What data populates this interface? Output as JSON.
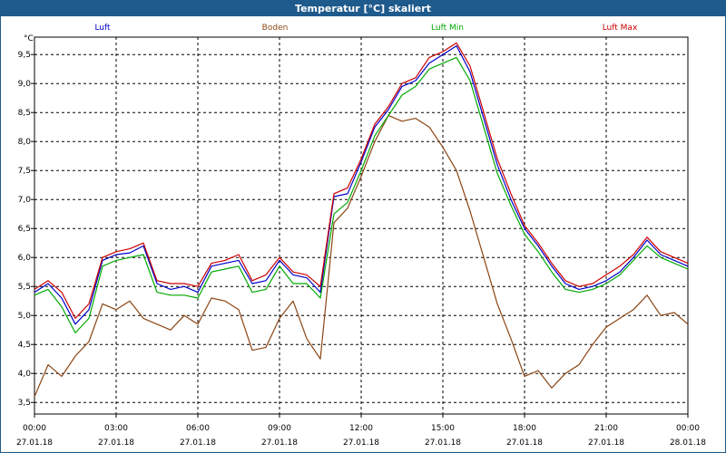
{
  "window": {
    "title": "Temperatur [°C] skaliert"
  },
  "chart_data": {
    "type": "line",
    "title": "Temperatur [°C] skaliert",
    "ylabel": "°C",
    "xlabel": "",
    "ylim": [
      3.3,
      9.8
    ],
    "yticks": [
      3.5,
      4.0,
      4.5,
      5.0,
      5.5,
      6.0,
      6.5,
      7.0,
      7.5,
      8.0,
      8.5,
      9.0,
      9.5
    ],
    "ytick_labels": [
      "3,5",
      "4,0",
      "4,5",
      "5,0",
      "5,5",
      "6,0",
      "6,5",
      "7,0",
      "7,5",
      "8,0",
      "8,5",
      "9,0",
      "9,5"
    ],
    "x_hours": [
      0,
      3,
      6,
      9,
      12,
      15,
      18,
      21,
      24
    ],
    "x_time_labels": [
      "00:00",
      "03:00",
      "06:00",
      "09:00",
      "12:00",
      "15:00",
      "18:00",
      "21:00",
      "00:00"
    ],
    "x_date_labels": [
      "27.01.18",
      "27.01.18",
      "27.01.18",
      "27.01.18",
      "27.01.18",
      "27.01.18",
      "27.01.18",
      "27.01.18",
      "28.01.18"
    ],
    "grid": true,
    "legend": "top",
    "series": [
      {
        "name": "Luft",
        "color": "#0000cc",
        "x": [
          0,
          0.5,
          1,
          1.5,
          2,
          2.5,
          3,
          3.5,
          4,
          4.5,
          5,
          5.5,
          6,
          6.5,
          7,
          7.5,
          8,
          8.5,
          9,
          9.5,
          10,
          10.5,
          11,
          11.5,
          12,
          12.5,
          13,
          13.5,
          14,
          14.5,
          15,
          15.5,
          16,
          16.5,
          17,
          17.5,
          18,
          18.5,
          19,
          19.5,
          20,
          20.5,
          21,
          21.5,
          22,
          22.5,
          23,
          23.5,
          24
        ],
        "y": [
          5.4,
          5.55,
          5.3,
          4.85,
          5.1,
          5.95,
          6.05,
          6.08,
          6.2,
          5.55,
          5.45,
          5.5,
          5.4,
          5.85,
          5.9,
          5.95,
          5.55,
          5.6,
          5.95,
          5.7,
          5.65,
          5.4,
          7.05,
          7.1,
          7.65,
          8.25,
          8.55,
          8.95,
          9.05,
          9.35,
          9.5,
          9.65,
          9.2,
          8.4,
          7.6,
          7.0,
          6.5,
          6.2,
          5.85,
          5.55,
          5.45,
          5.5,
          5.6,
          5.75,
          6.0,
          6.3,
          6.05,
          5.95,
          5.85
        ]
      },
      {
        "name": "Boden",
        "color": "#8b4513",
        "x": [
          0,
          0.5,
          1,
          1.5,
          2,
          2.5,
          3,
          3.5,
          4,
          4.5,
          5,
          5.5,
          6,
          6.5,
          7,
          7.5,
          8,
          8.5,
          9,
          9.5,
          10,
          10.5,
          11,
          11.5,
          12,
          12.5,
          13,
          13.5,
          14,
          14.5,
          15,
          15.5,
          16,
          16.5,
          17,
          17.5,
          18,
          18.5,
          19,
          19.5,
          20,
          20.5,
          21,
          21.5,
          22,
          22.5,
          23,
          23.5,
          24
        ],
        "y": [
          3.6,
          4.15,
          3.95,
          4.3,
          4.55,
          5.2,
          5.1,
          5.25,
          4.95,
          4.85,
          4.75,
          5.0,
          4.85,
          5.3,
          5.25,
          5.1,
          4.4,
          4.45,
          4.95,
          5.25,
          4.6,
          4.25,
          6.6,
          6.85,
          7.4,
          8.0,
          8.45,
          8.35,
          8.4,
          8.25,
          7.9,
          7.5,
          6.8,
          6.0,
          5.2,
          4.6,
          3.95,
          4.05,
          3.75,
          4.0,
          4.15,
          4.5,
          4.8,
          4.95,
          5.1,
          5.35,
          5.0,
          5.05,
          4.85
        ]
      },
      {
        "name": "Luft Min",
        "color": "#00aa00",
        "x": [
          0,
          0.5,
          1,
          1.5,
          2,
          2.5,
          3,
          3.5,
          4,
          4.5,
          5,
          5.5,
          6,
          6.5,
          7,
          7.5,
          8,
          8.5,
          9,
          9.5,
          10,
          10.5,
          11,
          11.5,
          12,
          12.5,
          13,
          13.5,
          14,
          14.5,
          15,
          15.5,
          16,
          16.5,
          17,
          17.5,
          18,
          18.5,
          19,
          19.5,
          20,
          20.5,
          21,
          21.5,
          22,
          22.5,
          23,
          23.5,
          24
        ],
        "y": [
          5.35,
          5.45,
          5.15,
          4.7,
          4.95,
          5.85,
          5.95,
          6.0,
          6.05,
          5.4,
          5.35,
          5.35,
          5.3,
          5.75,
          5.8,
          5.85,
          5.4,
          5.45,
          5.85,
          5.55,
          5.55,
          5.3,
          6.75,
          6.95,
          7.5,
          8.1,
          8.45,
          8.8,
          8.95,
          9.25,
          9.35,
          9.45,
          9.05,
          8.25,
          7.45,
          6.9,
          6.4,
          6.1,
          5.75,
          5.45,
          5.4,
          5.45,
          5.55,
          5.7,
          5.95,
          6.2,
          6.0,
          5.9,
          5.8
        ]
      },
      {
        "name": "Luft Max",
        "color": "#cc0000",
        "x": [
          0,
          0.5,
          1,
          1.5,
          2,
          2.5,
          3,
          3.5,
          4,
          4.5,
          5,
          5.5,
          6,
          6.5,
          7,
          7.5,
          8,
          8.5,
          9,
          9.5,
          10,
          10.5,
          11,
          11.5,
          12,
          12.5,
          13,
          13.5,
          14,
          14.5,
          15,
          15.5,
          16,
          16.5,
          17,
          17.5,
          18,
          18.5,
          19,
          19.5,
          20,
          20.5,
          21,
          21.5,
          22,
          22.5,
          23,
          23.5,
          24
        ],
        "y": [
          5.45,
          5.6,
          5.4,
          4.95,
          5.2,
          6.0,
          6.1,
          6.15,
          6.25,
          5.6,
          5.55,
          5.55,
          5.5,
          5.9,
          5.95,
          6.05,
          5.6,
          5.7,
          6.0,
          5.75,
          5.7,
          5.5,
          7.1,
          7.2,
          7.7,
          8.3,
          8.6,
          9.0,
          9.1,
          9.45,
          9.55,
          9.7,
          9.3,
          8.5,
          7.7,
          7.1,
          6.55,
          6.25,
          5.9,
          5.6,
          5.5,
          5.55,
          5.7,
          5.85,
          6.05,
          6.35,
          6.1,
          6.0,
          5.9
        ]
      }
    ]
  }
}
